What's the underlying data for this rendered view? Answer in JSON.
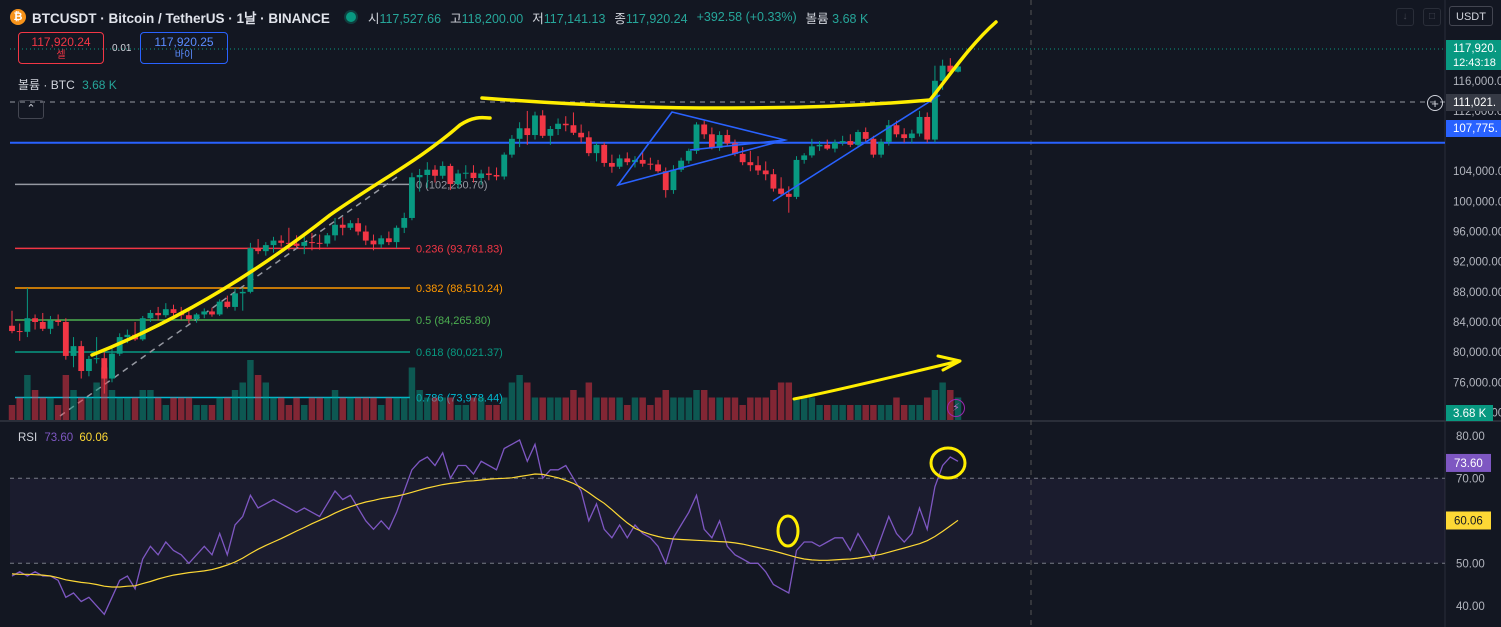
{
  "header": {
    "coin_glyph": "₿",
    "symbol": "BTCUSDT · Bitcoin / TetherUS · 1날 · BINANCE",
    "open_label": "시",
    "open": "117,527.66",
    "high_label": "고",
    "high": "118,200.00",
    "low_label": "저",
    "low": "117,141.13",
    "close_label": "종",
    "close": "117,920.24",
    "change": "+392.58 (+0.33%)",
    "volume_label": "볼륨",
    "volume": "3.68 K"
  },
  "trade": {
    "sell_price": "117,920.24",
    "sell_label": "셀",
    "spread": "0.01",
    "buy_price": "117,920.25",
    "buy_label": "바이"
  },
  "volume_legend": {
    "label": "볼륨 · BTC",
    "value": "3.68 K"
  },
  "currency": "USDT",
  "price_scale": {
    "ticks": [
      "120,000.00",
      "116,000.00",
      "112,000.00",
      "104,000.00",
      "100,000.00",
      "96,000.00",
      "92,000.00",
      "88,000.00",
      "84,000.00",
      "80,000.00",
      "76,000.00",
      "72,000.00"
    ],
    "last_price_label": "117,920.",
    "countdown": "12:43:18",
    "crosshair_label": "111,021.",
    "line_label": "107,775.",
    "volume_label": "3.68 K"
  },
  "rsi": {
    "label": "RSI",
    "value": "73.60",
    "ma_value": "60.06",
    "ticks": [
      "80.00",
      "70.00",
      "60.00",
      "50.00",
      "40.00"
    ]
  },
  "chart_data": {
    "type": "candlestick",
    "price_range": [
      71000,
      123000
    ],
    "rsi_range": [
      35,
      83
    ],
    "candles": [
      [
        83500,
        85500,
        82500,
        82800
      ],
      [
        82800,
        83800,
        81500,
        82700
      ],
      [
        82700,
        88500,
        82000,
        84500
      ],
      [
        84500,
        85000,
        83000,
        84000
      ],
      [
        84000,
        85200,
        82800,
        83100
      ],
      [
        83100,
        84800,
        82400,
        84200
      ],
      [
        84200,
        85000,
        83500,
        84000
      ],
      [
        84000,
        84500,
        79000,
        79500
      ],
      [
        79500,
        82000,
        78000,
        80800
      ],
      [
        80800,
        81500,
        76500,
        77500
      ],
      [
        77500,
        79500,
        76800,
        79100
      ],
      [
        79100,
        82000,
        78500,
        79200
      ],
      [
        79200,
        80000,
        74500,
        76500
      ],
      [
        76500,
        80500,
        76000,
        79800
      ],
      [
        79800,
        82500,
        79500,
        82000
      ],
      [
        82000,
        83000,
        81200,
        82300
      ],
      [
        82300,
        84000,
        81500,
        81700
      ],
      [
        81700,
        84800,
        81500,
        84500
      ],
      [
        84500,
        85600,
        84000,
        85200
      ],
      [
        85200,
        86000,
        84200,
        84900
      ],
      [
        84900,
        86500,
        84600,
        85700
      ],
      [
        85700,
        86300,
        84500,
        85200
      ],
      [
        85200,
        86000,
        84300,
        84900
      ],
      [
        84900,
        85500,
        83800,
        84400
      ],
      [
        84400,
        85200,
        83900,
        85000
      ],
      [
        85000,
        85800,
        84500,
        85400
      ],
      [
        85400,
        85900,
        84700,
        85000
      ],
      [
        85000,
        87000,
        84800,
        86700
      ],
      [
        86700,
        87500,
        85800,
        86000
      ],
      [
        86000,
        88500,
        85500,
        87800
      ],
      [
        87800,
        88500,
        85500,
        88000
      ],
      [
        88000,
        94500,
        87800,
        93800
      ],
      [
        93800,
        95000,
        93000,
        93400
      ],
      [
        93400,
        94600,
        92800,
        94200
      ],
      [
        94200,
        95300,
        93200,
        94800
      ],
      [
        94800,
        95500,
        94000,
        94500
      ],
      [
        94500,
        96500,
        93500,
        94400
      ],
      [
        94400,
        95500,
        93800,
        94100
      ],
      [
        94100,
        95500,
        93000,
        94600
      ],
      [
        94600,
        95800,
        93500,
        94500
      ],
      [
        94500,
        95600,
        93600,
        94400
      ],
      [
        94400,
        95800,
        94000,
        95500
      ],
      [
        95500,
        97800,
        94800,
        96900
      ],
      [
        96900,
        97900,
        95500,
        96500
      ],
      [
        96500,
        97500,
        96200,
        97100
      ],
      [
        97100,
        97800,
        95500,
        96000
      ],
      [
        96000,
        96800,
        94200,
        94800
      ],
      [
        94800,
        95600,
        93500,
        94300
      ],
      [
        94300,
        95500,
        93800,
        95100
      ],
      [
        95100,
        96000,
        94200,
        94600
      ],
      [
        94600,
        96800,
        93800,
        96500
      ],
      [
        96500,
        98500,
        95800,
        97800
      ],
      [
        97800,
        103800,
        97500,
        103200
      ],
      [
        103200,
        104300,
        101300,
        103500
      ],
      [
        103500,
        105200,
        101800,
        104200
      ],
      [
        104200,
        104800,
        102500,
        103400
      ],
      [
        103400,
        105300,
        103000,
        104700
      ],
      [
        104700,
        105000,
        101500,
        102300
      ],
      [
        102300,
        104200,
        101700,
        103700
      ],
      [
        103700,
        104800,
        103000,
        103800
      ],
      [
        103800,
        104800,
        102500,
        103100
      ],
      [
        103100,
        104200,
        102200,
        103700
      ],
      [
        103700,
        104600,
        102800,
        103500
      ],
      [
        103500,
        104500,
        102800,
        103300
      ],
      [
        103300,
        106500,
        102900,
        106200
      ],
      [
        106200,
        108800,
        105800,
        108300
      ],
      [
        108300,
        110500,
        107200,
        109700
      ],
      [
        109700,
        112000,
        107500,
        108800
      ],
      [
        108800,
        111900,
        108200,
        111400
      ],
      [
        111400,
        112100,
        108400,
        108700
      ],
      [
        108700,
        110000,
        107500,
        109600
      ],
      [
        109600,
        111000,
        108800,
        110300
      ],
      [
        110300,
        111300,
        109300,
        110100
      ],
      [
        110100,
        111800,
        108800,
        109100
      ],
      [
        109100,
        110200,
        107800,
        108500
      ],
      [
        108500,
        109300,
        106000,
        106400
      ],
      [
        106400,
        107800,
        105300,
        107500
      ],
      [
        107500,
        107800,
        104600,
        105100
      ],
      [
        105100,
        106200,
        103800,
        104600
      ],
      [
        104600,
        106200,
        104300,
        105700
      ],
      [
        105700,
        106500,
        104800,
        105200
      ],
      [
        105200,
        106000,
        104500,
        105500
      ],
      [
        105500,
        106600,
        104600,
        105000
      ],
      [
        105000,
        105800,
        104200,
        104900
      ],
      [
        104900,
        105500,
        103800,
        104000
      ],
      [
        104000,
        104500,
        100500,
        101500
      ],
      [
        101500,
        104800,
        101000,
        104200
      ],
      [
        104200,
        105800,
        103900,
        105400
      ],
      [
        105400,
        107000,
        105000,
        106700
      ],
      [
        106700,
        110500,
        106300,
        110200
      ],
      [
        110200,
        110700,
        108300,
        108900
      ],
      [
        108900,
        109800,
        106900,
        107100
      ],
      [
        107100,
        109300,
        106700,
        108800
      ],
      [
        108800,
        109500,
        107400,
        107700
      ],
      [
        107700,
        108200,
        106000,
        106300
      ],
      [
        106300,
        107200,
        104800,
        105200
      ],
      [
        105200,
        106700,
        104000,
        104800
      ],
      [
        104800,
        106000,
        103500,
        104100
      ],
      [
        104100,
        105300,
        102800,
        103600
      ],
      [
        103600,
        104300,
        101300,
        101700
      ],
      [
        101700,
        103200,
        100800,
        101000
      ],
      [
        101000,
        102000,
        98500,
        100600
      ],
      [
        100600,
        106000,
        100300,
        105500
      ],
      [
        105500,
        106400,
        105000,
        106100
      ],
      [
        106100,
        108300,
        105800,
        107300
      ],
      [
        107300,
        108000,
        106700,
        107500
      ],
      [
        107500,
        108200,
        106800,
        107000
      ],
      [
        107000,
        108200,
        106500,
        107800
      ],
      [
        107800,
        108700,
        107400,
        108000
      ],
      [
        108000,
        108900,
        107200,
        107500
      ],
      [
        107500,
        109500,
        107200,
        109200
      ],
      [
        109200,
        109800,
        107800,
        108300
      ],
      [
        108300,
        108700,
        105800,
        106200
      ],
      [
        106200,
        108300,
        105800,
        107900
      ],
      [
        107900,
        110800,
        107400,
        110100
      ],
      [
        110100,
        110700,
        108500,
        108900
      ],
      [
        108900,
        109700,
        107800,
        108400
      ],
      [
        108400,
        109500,
        107700,
        109000
      ],
      [
        109000,
        112000,
        108600,
        111200
      ],
      [
        111200,
        111800,
        107800,
        108200
      ],
      [
        108200,
        118000,
        107800,
        116000
      ],
      [
        116000,
        118800,
        114800,
        118000
      ],
      [
        118000,
        119000,
        117000,
        117200
      ],
      [
        117200,
        118200,
        117100,
        117900
      ]
    ],
    "volume": [
      2,
      3,
      6,
      4,
      3,
      3,
      2,
      6,
      4,
      3,
      3,
      5,
      7,
      4,
      3,
      3,
      3,
      4,
      4,
      3,
      2,
      3,
      3,
      3,
      2,
      2,
      2,
      3,
      3,
      4,
      5,
      8,
      6,
      5,
      3,
      3,
      2,
      3,
      2,
      3,
      3,
      3,
      4,
      3,
      3,
      3,
      3,
      3,
      2,
      3,
      3,
      3,
      7,
      4,
      3,
      3,
      3,
      3,
      2,
      2,
      3,
      3,
      2,
      2,
      3,
      5,
      6,
      5,
      3,
      3,
      3,
      3,
      3,
      4,
      3,
      5,
      3,
      3,
      3,
      3,
      2,
      3,
      3,
      2,
      3,
      4,
      3,
      3,
      3,
      4,
      4,
      3,
      3,
      3,
      3,
      2,
      3,
      3,
      3,
      4,
      5,
      5,
      3,
      3,
      3,
      2,
      2,
      2,
      2,
      2,
      2,
      2,
      2,
      2,
      2,
      3,
      2,
      2,
      2,
      3,
      4,
      5,
      4,
      3
    ],
    "rsi": [
      47,
      48,
      47,
      48,
      47,
      47,
      46,
      42,
      43,
      41,
      42,
      40,
      38,
      42,
      46,
      47,
      44,
      51,
      54,
      52,
      55,
      53,
      52,
      50,
      52,
      54,
      52,
      57,
      52,
      59,
      61,
      66,
      63,
      64,
      65,
      64,
      63,
      62,
      63,
      62,
      61,
      64,
      67,
      65,
      66,
      63,
      60,
      58,
      60,
      58,
      62,
      67,
      72,
      74,
      75,
      73,
      76,
      70,
      73,
      73,
      71,
      74,
      73,
      72,
      77,
      78,
      79,
      74,
      78,
      70,
      72,
      72,
      73,
      70,
      67,
      60,
      64,
      58,
      56,
      59,
      56,
      59,
      57,
      56,
      54,
      50,
      56,
      59,
      62,
      66,
      58,
      56,
      60,
      54,
      52,
      51,
      50,
      50,
      48,
      45,
      44,
      43,
      53,
      55,
      55,
      54,
      55,
      56,
      56,
      53,
      57,
      54,
      51,
      56,
      61,
      57,
      55,
      57,
      63,
      58,
      68,
      73,
      75,
      74
    ],
    "rsi_ma": [
      47.5,
      47.4,
      47.4,
      47.3,
      47.2,
      47,
      46.6,
      46.1,
      45.8,
      45.5,
      45.3,
      45,
      44.6,
      44.4,
      44.4,
      44.6,
      44.7,
      45.2,
      45.7,
      46.3,
      46.8,
      47.2,
      47.5,
      47.8,
      48,
      48.2,
      48.5,
      49,
      49.6,
      50.3,
      51.2,
      52.3,
      53.3,
      54.2,
      55,
      55.8,
      56.7,
      57.6,
      58.4,
      59.3,
      60.1,
      60.9,
      61.8,
      62.6,
      63.3,
      63.9,
      64.4,
      64.8,
      65.2,
      65.5,
      65.8,
      66.2,
      66.7,
      67.2,
      67.7,
      68.1,
      68.5,
      68.8,
      69,
      69.3,
      69.4,
      69.6,
      69.8,
      69.9,
      70,
      70.1,
      70.4,
      70.7,
      71,
      70.9,
      70.5,
      70.1,
      69.5,
      68.8,
      67.8,
      66.6,
      65.3,
      64.1,
      62.6,
      61,
      59.5,
      58.2,
      57.4,
      56.8,
      56.3,
      55.9,
      55.7,
      55.6,
      55.5,
      55.4,
      55.3,
      55.2,
      55.1,
      55,
      54.8,
      54.5,
      54.1,
      53.7,
      53.3,
      52.9,
      52.4,
      51.9,
      51.4,
      51,
      50.8,
      50.7,
      50.7,
      50.8,
      50.9,
      51,
      51.2,
      51.5,
      51.8,
      52.1,
      52.6,
      53.1,
      53.6,
      54.1,
      54.6,
      55.3,
      56.3,
      57.5,
      58.8,
      60.1
    ],
    "fib_levels": [
      {
        "label": "0 (102,250.70)",
        "price": 102250.7,
        "color": "#9598a1"
      },
      {
        "label": "0.236 (93,761.83)",
        "price": 93761.83,
        "color": "#f23645"
      },
      {
        "label": "0.382 (88,510.24)",
        "price": 88510.24,
        "color": "#ff9800"
      },
      {
        "label": "0.5 (84,265.80)",
        "price": 84265.8,
        "color": "#4caf50"
      },
      {
        "label": "0.618 (80,021.37)",
        "price": 80021.37,
        "color": "#089981"
      },
      {
        "label": "0.786 (73,978.44)",
        "price": 73978.44,
        "color": "#00bcd4"
      }
    ],
    "horizontal_line": 107775,
    "last_price": 117920.24
  }
}
